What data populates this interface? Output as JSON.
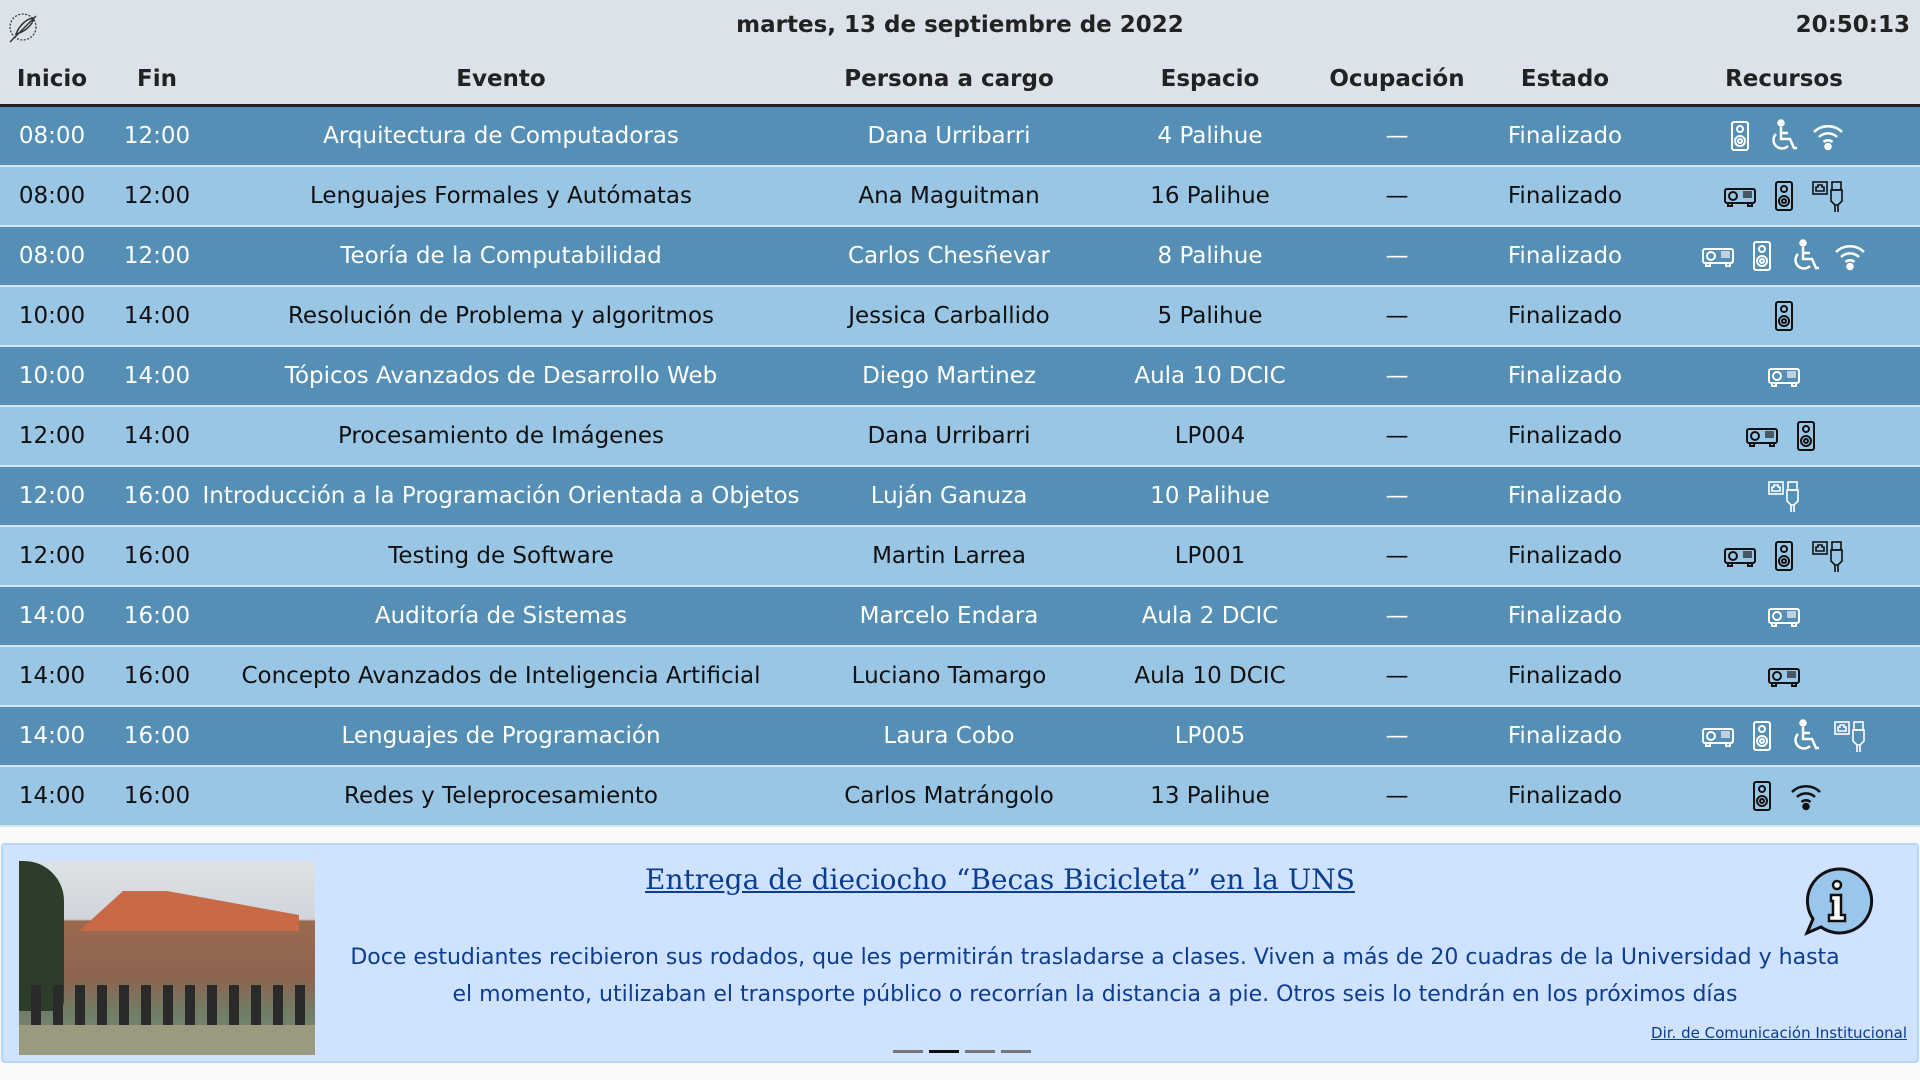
{
  "header": {
    "date": "martes, 13 de septiembre de 2022",
    "time": "20:50:13",
    "logo_icon": "feather-seal-icon"
  },
  "columns": [
    "Inicio",
    "Fin",
    "Evento",
    "Persona a cargo",
    "Espacio",
    "Ocupación",
    "Estado",
    "Recursos"
  ],
  "colors": {
    "row_dark": "#558fb5",
    "row_light": "#9ac6e6",
    "header_bg": "#dbe2e9",
    "banner_bg": "#cfe2ff",
    "link": "#0b3d91"
  },
  "rows": [
    {
      "inicio": "08:00",
      "fin": "12:00",
      "evento": "Arquitectura de Computadoras",
      "persona": "Dana Urribarri",
      "espacio": "4 Palihue",
      "ocupacion": "—",
      "estado": "Finalizado",
      "recursos": [
        "speaker",
        "wheelchair",
        "wifi"
      ]
    },
    {
      "inicio": "08:00",
      "fin": "12:00",
      "evento": "Lenguajes Formales y Autómatas",
      "persona": "Ana Maguitman",
      "espacio": "16 Palihue",
      "ocupacion": "—",
      "estado": "Finalizado",
      "recursos": [
        "projector",
        "speaker",
        "network"
      ]
    },
    {
      "inicio": "08:00",
      "fin": "12:00",
      "evento": "Teoría de la Computabilidad",
      "persona": "Carlos Chesñevar",
      "espacio": "8 Palihue",
      "ocupacion": "—",
      "estado": "Finalizado",
      "recursos": [
        "projector",
        "speaker",
        "wheelchair",
        "wifi"
      ]
    },
    {
      "inicio": "10:00",
      "fin": "14:00",
      "evento": "Resolución de Problema y algoritmos",
      "persona": "Jessica Carballido",
      "espacio": "5 Palihue",
      "ocupacion": "—",
      "estado": "Finalizado",
      "recursos": [
        "speaker"
      ]
    },
    {
      "inicio": "10:00",
      "fin": "14:00",
      "evento": "Tópicos Avanzados de Desarrollo Web",
      "persona": "Diego Martinez",
      "espacio": "Aula 10 DCIC",
      "ocupacion": "—",
      "estado": "Finalizado",
      "recursos": [
        "projector"
      ]
    },
    {
      "inicio": "12:00",
      "fin": "14:00",
      "evento": "Procesamiento de Imágenes",
      "persona": "Dana Urribarri",
      "espacio": "LP004",
      "ocupacion": "—",
      "estado": "Finalizado",
      "recursos": [
        "projector",
        "speaker"
      ]
    },
    {
      "inicio": "12:00",
      "fin": "16:00",
      "evento": "Introducción a la Programación Orientada a Objetos",
      "persona": "Luján Ganuza",
      "espacio": "10 Palihue",
      "ocupacion": "—",
      "estado": "Finalizado",
      "recursos": [
        "network"
      ]
    },
    {
      "inicio": "12:00",
      "fin": "16:00",
      "evento": "Testing de Software",
      "persona": "Martin Larrea",
      "espacio": "LP001",
      "ocupacion": "—",
      "estado": "Finalizado",
      "recursos": [
        "projector",
        "speaker",
        "network"
      ]
    },
    {
      "inicio": "14:00",
      "fin": "16:00",
      "evento": "Auditoría de Sistemas",
      "persona": "Marcelo Endara",
      "espacio": "Aula 2 DCIC",
      "ocupacion": "—",
      "estado": "Finalizado",
      "recursos": [
        "projector"
      ]
    },
    {
      "inicio": "14:00",
      "fin": "16:00",
      "evento": "Concepto Avanzados de Inteligencia Artificial",
      "persona": "Luciano Tamargo",
      "espacio": "Aula 10 DCIC",
      "ocupacion": "—",
      "estado": "Finalizado",
      "recursos": [
        "projector"
      ]
    },
    {
      "inicio": "14:00",
      "fin": "16:00",
      "evento": "Lenguajes de Programación",
      "persona": "Laura Cobo",
      "espacio": "LP005",
      "ocupacion": "—",
      "estado": "Finalizado",
      "recursos": [
        "projector",
        "speaker",
        "wheelchair",
        "network"
      ]
    },
    {
      "inicio": "14:00",
      "fin": "16:00",
      "evento": "Redes y Teleprocesamiento",
      "persona": "Carlos Matrángolo",
      "espacio": "13 Palihue",
      "ocupacion": "—",
      "estado": "Finalizado",
      "recursos": [
        "speaker",
        "wifi"
      ]
    }
  ],
  "news": {
    "title": "Entrega de dieciocho “Becas Bicicleta” en la UNS",
    "body": "Doce estudiantes recibieron sus rodados, que les permitirán trasladarse a clases. Viven a más de 20 cuadras de la Universidad y hasta el momento, utilizaban el transporte público o recorrían la distancia a pie. Otros seis lo tendrán en los próximos días",
    "source": "Dir. de Comunicación Institucional",
    "icon": "info-bubble-icon",
    "slides": 4,
    "active_slide": 2
  }
}
